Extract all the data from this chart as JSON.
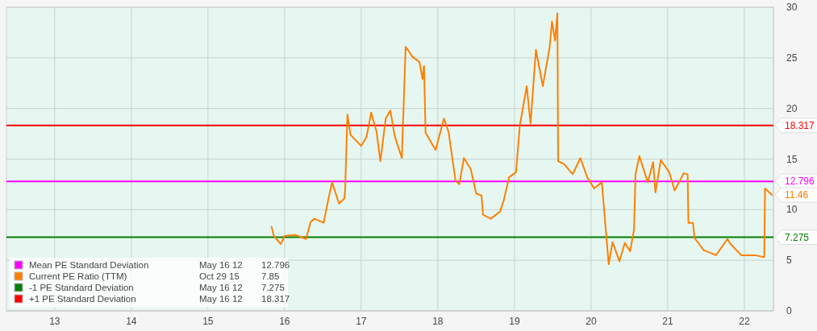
{
  "chart_data": {
    "type": "line",
    "xlim": [
      12.37,
      22.38
    ],
    "xticks": [
      13,
      14,
      15,
      16,
      17,
      18,
      19,
      20,
      21,
      22
    ],
    "ylim": [
      0,
      30
    ],
    "yticks": [
      0,
      5,
      10,
      15,
      20,
      25,
      30
    ],
    "grid": true,
    "legend": "bottom left",
    "line_style": "solid",
    "marker": "none",
    "series": [
      {
        "name": "Current PE Ratio (TTM)",
        "color": "#ff7f00",
        "x": [
          15.83,
          15.86,
          15.95,
          16.0,
          16.14,
          16.28,
          16.34,
          16.39,
          16.51,
          16.57,
          16.62,
          16.71,
          16.78,
          16.79,
          16.82,
          16.86,
          17.0,
          17.07,
          17.13,
          17.2,
          17.25,
          17.32,
          17.38,
          17.44,
          17.53,
          17.58,
          17.67,
          17.76,
          17.8,
          17.82,
          17.84,
          17.97,
          18.08,
          18.14,
          18.23,
          18.28,
          18.34,
          18.43,
          18.5,
          18.57,
          18.59,
          18.69,
          18.81,
          18.86,
          18.93,
          19.02,
          19.07,
          19.16,
          19.21,
          19.28,
          19.37,
          19.46,
          19.49,
          19.53,
          19.56,
          19.57,
          19.65,
          19.76,
          19.86,
          19.95,
          20.04,
          20.14,
          20.23,
          20.28,
          20.37,
          20.44,
          20.51,
          20.56,
          20.58,
          20.63,
          20.74,
          20.81,
          20.84,
          20.91,
          21.02,
          21.09,
          21.21,
          21.26,
          21.27,
          21.33,
          21.35,
          21.47,
          21.63,
          21.78,
          21.82,
          21.96,
          22.14,
          22.26,
          22.27,
          22.36
        ],
        "values": [
          8.3,
          7.4,
          6.6,
          7.4,
          7.5,
          7.1,
          8.8,
          9.1,
          8.7,
          11.0,
          12.7,
          10.6,
          11.1,
          11.9,
          19.4,
          17.4,
          16.3,
          17.2,
          19.6,
          17.7,
          14.8,
          19.0,
          19.8,
          17.2,
          15.1,
          26.1,
          25.1,
          24.6,
          22.9,
          24.2,
          17.6,
          15.9,
          19.0,
          17.7,
          12.9,
          12.5,
          15.1,
          14.0,
          11.6,
          11.4,
          9.5,
          9.1,
          9.8,
          10.9,
          13.2,
          13.7,
          18.3,
          22.2,
          18.5,
          25.8,
          22.2,
          26.1,
          28.6,
          26.7,
          29.4,
          14.8,
          14.5,
          13.5,
          15.1,
          13.2,
          12.1,
          12.7,
          4.6,
          6.8,
          4.9,
          6.7,
          5.9,
          8.0,
          13.5,
          15.3,
          12.7,
          14.7,
          11.7,
          14.9,
          13.7,
          11.9,
          13.6,
          13.5,
          8.7,
          8.7,
          7.2,
          6.0,
          5.5,
          7.1,
          6.6,
          5.5,
          5.5,
          5.3,
          12.1,
          11.46
        ]
      }
    ],
    "ref_lines": [
      {
        "axis": "y",
        "value": 12.796,
        "label": "Mean PE Standard Deviation",
        "color": "#ff00ff"
      },
      {
        "axis": "y",
        "value": 7.275,
        "label": "-1 PE Standard Deviation",
        "color": "#008000"
      },
      {
        "axis": "y",
        "value": 18.317,
        "label": "+1 PE Standard Deviation",
        "color": "#ff0000"
      }
    ],
    "annotations": [
      "May 16 12",
      "12.796",
      "Oct 29 15",
      "7.85",
      "May 16 12",
      "7.275",
      "May 16 12",
      "18.317",
      "12.796",
      "7.275",
      "18.317",
      "11.46"
    ]
  }
}
